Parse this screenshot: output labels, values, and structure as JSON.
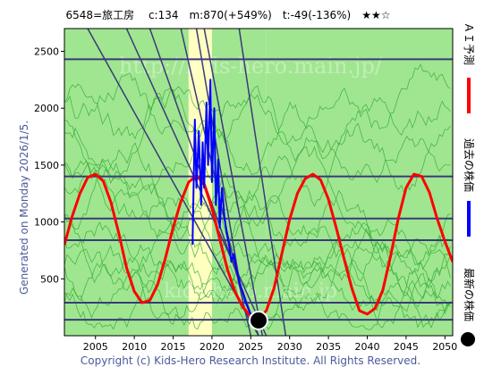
{
  "header": {
    "title": "6548=旅工房　 c:134　m:870(+549%)　t:-49(-136%)　★★☆"
  },
  "side_label": "Generated on Monday 2026/1/5.",
  "footer": "Copyright (c) Kids-Hero Research Institute. All Rights Reserved.",
  "watermarks": [
    "http://kids-hero.main.jp/",
    "kids-hero.main.jp"
  ],
  "legend": [
    {
      "label": "ＡＩ予測",
      "color": "#ff0000",
      "kind": "line"
    },
    {
      "label": "過去の株価",
      "color": "#0000ff",
      "kind": "line"
    },
    {
      "label": "最新の株価",
      "color": "#000000",
      "kind": "dot"
    }
  ],
  "chart_data": {
    "type": "line",
    "xlim": [
      2001,
      2051
    ],
    "ylim": [
      0,
      2700
    ],
    "x_ticks": [
      2005,
      2010,
      2015,
      2020,
      2025,
      2030,
      2035,
      2040,
      2045,
      2050
    ],
    "y_ticks": [
      500,
      1000,
      1500,
      2000,
      2500
    ],
    "horizontal_lines": [
      2430,
      1400,
      1030,
      840,
      290,
      140
    ],
    "diagonal_lines": [
      [
        [
          2004,
          2700
        ],
        [
          2026,
          0
        ]
      ],
      [
        [
          2009,
          2700
        ],
        [
          2027,
          0
        ]
      ],
      [
        [
          2012,
          2700
        ],
        [
          2026,
          0
        ]
      ],
      [
        [
          2016,
          2700
        ],
        [
          2025,
          0
        ]
      ],
      [
        [
          2018,
          2700
        ],
        [
          2024,
          300
        ]
      ],
      [
        [
          2019,
          2700
        ],
        [
          2026.5,
          0
        ]
      ],
      [
        [
          2023.5,
          2700
        ],
        [
          2029.5,
          0
        ]
      ]
    ],
    "background_bands": [
      {
        "from": 2001,
        "to": 2017,
        "color": "#a0e690"
      },
      {
        "from": 2017,
        "to": 2020,
        "color": "#ffffc0"
      },
      {
        "from": 2020,
        "to": 2027,
        "color": "#a0e690"
      },
      {
        "from": 2027,
        "to": 2051,
        "color": "#a0e690"
      }
    ],
    "series": [
      {
        "name": "ＡＩ予測",
        "color": "#ff0000",
        "x": [
          2001,
          2002,
          2003,
          2004,
          2005,
          2006,
          2007,
          2008,
          2009,
          2010,
          2011,
          2012,
          2013,
          2014,
          2015,
          2016,
          2017,
          2018,
          2019,
          2020,
          2021,
          2022,
          2023,
          2024,
          2025,
          2026,
          2027,
          2028,
          2029,
          2030,
          2031,
          2032,
          2033,
          2034,
          2035,
          2036,
          2037,
          2038,
          2039,
          2040,
          2041,
          2042,
          2043,
          2044,
          2045,
          2046,
          2047,
          2048,
          2049,
          2050,
          2051
        ],
        "values": [
          800,
          1050,
          1250,
          1390,
          1420,
          1360,
          1170,
          900,
          600,
          390,
          290,
          310,
          450,
          680,
          950,
          1180,
          1350,
          1410,
          1330,
          1120,
          850,
          580,
          380,
          250,
          170,
          150,
          220,
          420,
          720,
          1020,
          1250,
          1380,
          1420,
          1370,
          1200,
          950,
          680,
          420,
          220,
          190,
          240,
          400,
          700,
          1030,
          1300,
          1420,
          1400,
          1260,
          1030,
          830,
          650
        ]
      },
      {
        "name": "過去の株価",
        "color": "#0000ff",
        "x": [
          2017.5,
          2017.8,
          2018.0,
          2018.3,
          2018.6,
          2018.8,
          2019.0,
          2019.3,
          2019.5,
          2019.8,
          2020.0,
          2020.3,
          2020.5,
          2020.8,
          2021.0,
          2021.3,
          2021.6,
          2021.9,
          2022.2,
          2022.5,
          2022.8,
          2023.1,
          2023.4,
          2023.7,
          2024.0,
          2024.3,
          2024.6,
          2024.9,
          2025.2,
          2025.5,
          2025.8,
          2026.0
        ],
        "values": [
          800,
          1900,
          1300,
          1800,
          1150,
          1700,
          1300,
          2050,
          1500,
          2250,
          1350,
          2000,
          1150,
          1550,
          950,
          1300,
          1050,
          900,
          800,
          650,
          720,
          600,
          520,
          430,
          380,
          300,
          250,
          200,
          180,
          160,
          150,
          134
        ]
      }
    ],
    "latest": {
      "x": 2026,
      "value": 134
    }
  }
}
